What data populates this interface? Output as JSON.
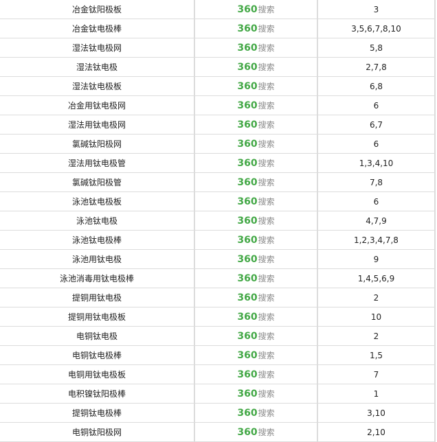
{
  "logo": {
    "number": "360",
    "text": "搜索",
    "color": "#43a846",
    "icon": "360-search-logo"
  },
  "rows": [
    {
      "name": "冶金钛阳极板",
      "values": "3"
    },
    {
      "name": "冶金钛电极棒",
      "values": "3,5,6,7,8,10"
    },
    {
      "name": "湿法钛电极网",
      "values": "5,8"
    },
    {
      "name": "湿法钛电极",
      "values": "2,7,8"
    },
    {
      "name": "湿法钛电极板",
      "values": "6,8"
    },
    {
      "name": "冶金用钛电极网",
      "values": "6"
    },
    {
      "name": "湿法用钛电极网",
      "values": "6,7"
    },
    {
      "name": "氯碱钛阳极网",
      "values": "6"
    },
    {
      "name": "湿法用钛电极管",
      "values": "1,3,4,10"
    },
    {
      "name": "氯碱钛阳极管",
      "values": "7,8"
    },
    {
      "name": "泳池钛电极板",
      "values": "6"
    },
    {
      "name": "泳池钛电极",
      "values": "4,7,9"
    },
    {
      "name": "泳池钛电极棒",
      "values": "1,2,3,4,7,8"
    },
    {
      "name": "泳池用钛电极",
      "values": "9"
    },
    {
      "name": "泳池消毒用钛电极棒",
      "values": "1,4,5,6,9"
    },
    {
      "name": "提铜用钛电极",
      "values": "2"
    },
    {
      "name": "提铜用钛电极板",
      "values": "10"
    },
    {
      "name": "电铜钛电极",
      "values": "2"
    },
    {
      "name": "电铜钛电极棒",
      "values": "1,5"
    },
    {
      "name": "电铜用钛电极板",
      "values": "7"
    },
    {
      "name": "电积镍钛阳极棒",
      "values": "1"
    },
    {
      "name": "提铜钛电极棒",
      "values": "3,10"
    },
    {
      "name": "电铜钛阳极网",
      "values": "2,10"
    }
  ]
}
